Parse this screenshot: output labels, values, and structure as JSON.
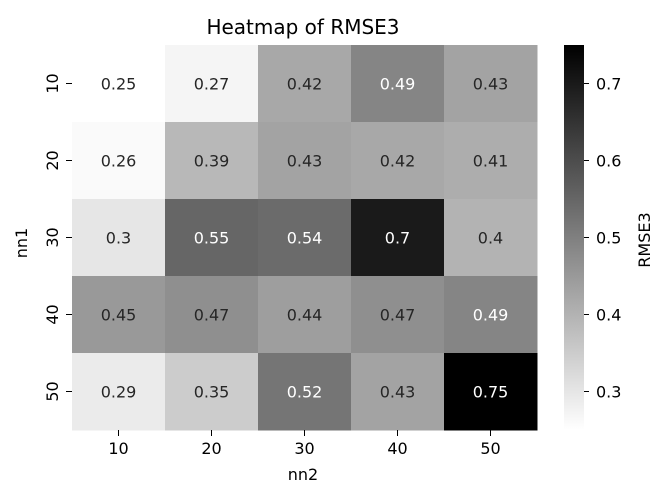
{
  "chart_data": {
    "type": "heatmap",
    "title": "Heatmap of RMSE3",
    "xlabel": "nn2",
    "ylabel": "nn1",
    "x_categories": [
      "10",
      "20",
      "30",
      "40",
      "50"
    ],
    "y_categories": [
      "10",
      "20",
      "30",
      "40",
      "50"
    ],
    "values": [
      [
        0.25,
        0.27,
        0.42,
        0.49,
        0.43
      ],
      [
        0.26,
        0.39,
        0.43,
        0.42,
        0.41
      ],
      [
        0.3,
        0.55,
        0.54,
        0.7,
        0.4
      ],
      [
        0.45,
        0.47,
        0.44,
        0.47,
        0.49
      ],
      [
        0.29,
        0.35,
        0.52,
        0.43,
        0.75
      ]
    ],
    "cell_labels": [
      [
        "0.25",
        "0.27",
        "0.42",
        "0.49",
        "0.43"
      ],
      [
        "0.26",
        "0.39",
        "0.43",
        "0.42",
        "0.41"
      ],
      [
        "0.3",
        "0.55",
        "0.54",
        "0.7",
        "0.4"
      ],
      [
        "0.45",
        "0.47",
        "0.44",
        "0.47",
        "0.49"
      ],
      [
        "0.29",
        "0.35",
        "0.52",
        "0.43",
        "0.75"
      ]
    ],
    "colorbar": {
      "label": "RMSE3",
      "min": 0.25,
      "max": 0.75,
      "ticks": [
        0.3,
        0.4,
        0.5,
        0.6,
        0.7
      ],
      "tick_labels": [
        "0.3",
        "0.4",
        "0.5",
        "0.6",
        "0.7"
      ]
    },
    "colormap": "Greys",
    "low_color": "#ffffff",
    "high_color": "#000000",
    "text_color_light": "#ffffff",
    "text_color_dark": "#262626"
  }
}
